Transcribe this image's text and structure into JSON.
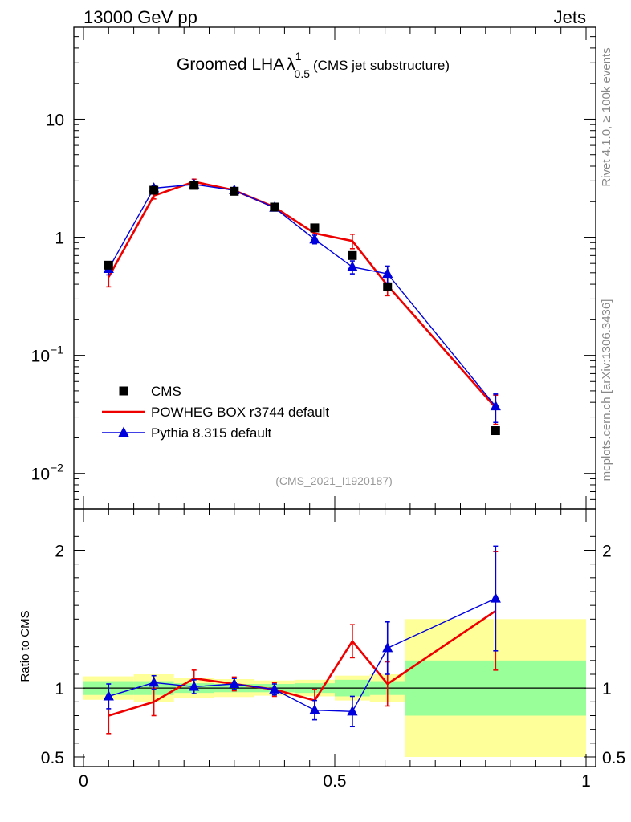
{
  "header": {
    "left": "13000 GeV pp",
    "right": "Jets"
  },
  "side": {
    "rivet": "Rivet 4.1.0, ≥ 100k events",
    "source": "mcplots.cern.ch [arXiv:1306.3436]"
  },
  "chart_data": {
    "type": "line",
    "title": {
      "main": "Groomed LHA",
      "symbol": "λ",
      "sup": "1",
      "sub": "0.5",
      "suffix": "(CMS jet substructure)"
    },
    "analysis_tag": "(CMS_2021_I1920187)",
    "xlim": [
      0,
      1
    ],
    "x_ticks": [
      {
        "v": 0,
        "label": "0"
      },
      {
        "v": 0.5,
        "label": "0.5"
      },
      {
        "v": 1,
        "label": "1"
      }
    ],
    "top_panel": {
      "yscale": "log",
      "ylim": [
        0.005,
        60
      ],
      "y_ticks": [
        {
          "v": 10,
          "base": "10",
          "exp": ""
        },
        {
          "v": 1,
          "base": "1",
          "exp": ""
        },
        {
          "v": 0.1,
          "base": "10",
          "exp": "−1"
        },
        {
          "v": 0.01,
          "base": "10",
          "exp": "−2"
        }
      ]
    },
    "ratio_panel": {
      "ylabel": "Ratio to CMS",
      "ylim": [
        0.43,
        2.3
      ],
      "y_ticks": [
        {
          "v": 0.5,
          "label": "0.5"
        },
        {
          "v": 1,
          "label": "1"
        },
        {
          "v": 2,
          "label": "2"
        }
      ],
      "reference": 1
    },
    "bins": [
      {
        "lo": 0.0,
        "hi": 0.1
      },
      {
        "lo": 0.1,
        "hi": 0.18
      },
      {
        "lo": 0.18,
        "hi": 0.26
      },
      {
        "lo": 0.26,
        "hi": 0.34
      },
      {
        "lo": 0.34,
        "hi": 0.42
      },
      {
        "lo": 0.42,
        "hi": 0.5
      },
      {
        "lo": 0.5,
        "hi": 0.57
      },
      {
        "lo": 0.57,
        "hi": 0.64
      },
      {
        "lo": 0.64,
        "hi": 1.0
      }
    ],
    "legend_position": "lower-left",
    "series": [
      {
        "name": "CMS",
        "style": "data",
        "marker": "square",
        "color": "#000000",
        "x": [
          0.05,
          0.14,
          0.22,
          0.3,
          0.38,
          0.46,
          0.535,
          0.605,
          0.82
        ],
        "y": [
          0.58,
          2.5,
          2.75,
          2.45,
          1.8,
          1.2,
          0.7,
          0.38,
          0.023
        ],
        "band_green": [
          0.05,
          0.05,
          0.035,
          0.03,
          0.03,
          0.035,
          0.06,
          0.05,
          0.2
        ],
        "band_yellow": [
          0.085,
          0.1,
          0.075,
          0.065,
          0.055,
          0.06,
          0.09,
          0.1,
          0.5
        ]
      },
      {
        "name": "POWHEG BOX r3744 default",
        "style": "line",
        "marker": "none",
        "color": "#ee0000",
        "line_width": 2.6,
        "x": [
          0.05,
          0.14,
          0.22,
          0.3,
          0.38,
          0.46,
          0.535,
          0.605,
          0.82
        ],
        "y": [
          0.46,
          2.25,
          2.95,
          2.5,
          1.8,
          1.08,
          0.93,
          0.39,
          0.036
        ],
        "err": [
          0.08,
          0.14,
          0.15,
          0.12,
          0.09,
          0.1,
          0.13,
          0.07,
          0.01
        ],
        "ratio": [
          0.8,
          0.9,
          1.07,
          1.03,
          0.99,
          0.91,
          1.34,
          1.03,
          1.56
        ],
        "ratio_err": [
          0.13,
          0.1,
          0.06,
          0.05,
          0.05,
          0.08,
          0.12,
          0.16,
          0.43
        ]
      },
      {
        "name": "Pythia 8.315 default",
        "style": "line",
        "marker": "triangle",
        "color": "#0000dd",
        "line_width": 1.4,
        "x": [
          0.05,
          0.14,
          0.22,
          0.3,
          0.38,
          0.46,
          0.535,
          0.605,
          0.82
        ],
        "y": [
          0.54,
          2.6,
          2.8,
          2.5,
          1.78,
          0.96,
          0.56,
          0.49,
          0.037
        ],
        "err": [
          0.06,
          0.12,
          0.13,
          0.11,
          0.08,
          0.08,
          0.07,
          0.08,
          0.01
        ],
        "ratio": [
          0.94,
          1.04,
          1.01,
          1.03,
          0.99,
          0.84,
          0.83,
          1.29,
          1.65
        ],
        "ratio_err": [
          0.09,
          0.05,
          0.05,
          0.04,
          0.04,
          0.07,
          0.11,
          0.19,
          0.38
        ]
      }
    ]
  }
}
